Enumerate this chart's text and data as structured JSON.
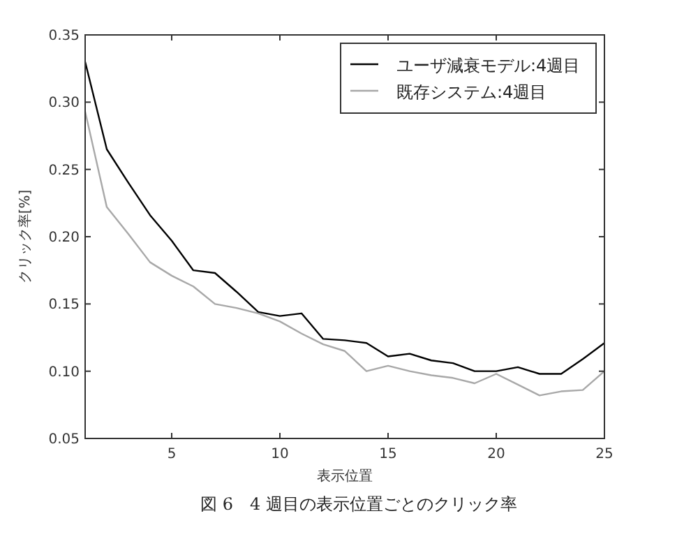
{
  "chart_data": {
    "type": "line",
    "xlabel": "表示位置",
    "ylabel": "クリック率[%]",
    "annotations": [
      "図 6　4 週目の表示位置ごとのクリック率"
    ],
    "x": [
      1,
      2,
      3,
      4,
      5,
      6,
      7,
      8,
      9,
      10,
      11,
      12,
      13,
      14,
      15,
      16,
      17,
      18,
      19,
      20,
      21,
      22,
      23,
      24,
      25
    ],
    "series": [
      {
        "name": "ユーザ減衰モデル:4週目",
        "color": "#000000",
        "values": [
          0.33,
          0.265,
          0.24,
          0.216,
          0.197,
          0.175,
          0.173,
          0.159,
          0.144,
          0.141,
          0.143,
          0.124,
          0.123,
          0.121,
          0.111,
          0.113,
          0.108,
          0.106,
          0.1,
          0.1,
          0.103,
          0.098,
          0.098,
          0.109,
          0.121
        ]
      },
      {
        "name": "既存システム:4週目",
        "color": "#a8a8a8",
        "values": [
          0.293,
          0.222,
          0.202,
          0.181,
          0.171,
          0.163,
          0.15,
          0.147,
          0.143,
          0.137,
          0.128,
          0.12,
          0.115,
          0.1,
          0.104,
          0.1,
          0.097,
          0.095,
          0.091,
          0.098,
          0.09,
          0.082,
          0.085,
          0.086,
          0.1
        ]
      }
    ],
    "xlim": [
      1,
      25
    ],
    "xticks": [
      5,
      10,
      15,
      20,
      25
    ],
    "ylim": [
      0.05,
      0.35
    ],
    "yticks": [
      0.05,
      {
        "value": 0.1,
        "label": "0.10"
      },
      0.15,
      {
        "value": 0.2,
        "label": "0.20"
      },
      0.25,
      {
        "value": 0.3,
        "label": "0.30"
      },
      0.35
    ],
    "legend": "top right",
    "grid": false,
    "marker": "none",
    "line_style": "solid"
  }
}
